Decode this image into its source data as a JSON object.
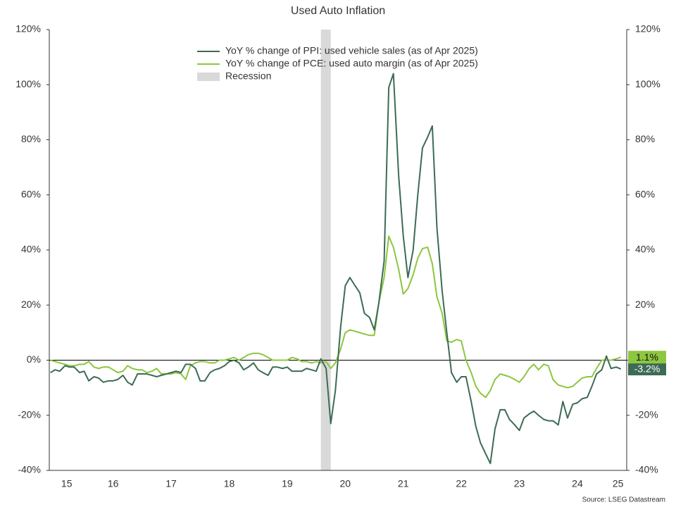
{
  "chart_data": {
    "type": "line",
    "title": "Used Auto Inflation",
    "source": "Source: LSEG Datastream",
    "x": [
      2015.42,
      2015.5,
      2015.58,
      2015.67,
      2015.75,
      2015.83,
      2015.92,
      2016.0,
      2016.08,
      2016.17,
      2016.25,
      2016.33,
      2016.42,
      2016.5,
      2016.58,
      2016.67,
      2016.75,
      2016.83,
      2016.92,
      2017.0,
      2017.08,
      2017.17,
      2017.25,
      2017.33,
      2017.42,
      2017.5,
      2017.58,
      2017.67,
      2017.75,
      2017.83,
      2017.92,
      2018.0,
      2018.08,
      2018.17,
      2018.25,
      2018.33,
      2018.42,
      2018.5,
      2018.58,
      2018.67,
      2018.75,
      2018.83,
      2018.92,
      2019.0,
      2019.08,
      2019.17,
      2019.25,
      2019.33,
      2019.42,
      2019.5,
      2019.58,
      2019.67,
      2019.75,
      2019.83,
      2019.92,
      2020.0,
      2020.08,
      2020.17,
      2020.25,
      2020.33,
      2020.42,
      2020.5,
      2020.58,
      2020.67,
      2020.75,
      2020.83,
      2020.92,
      2021.0,
      2021.08,
      2021.17,
      2021.25,
      2021.33,
      2021.42,
      2021.5,
      2021.58,
      2021.67,
      2021.75,
      2021.83,
      2021.92,
      2022.0,
      2022.08,
      2022.17,
      2022.25,
      2022.33,
      2022.42,
      2022.5,
      2022.58,
      2022.67,
      2022.75,
      2022.83,
      2022.92,
      2023.0,
      2023.08,
      2023.17,
      2023.25,
      2023.33,
      2023.42,
      2023.5,
      2023.58,
      2023.67,
      2023.75,
      2023.83,
      2023.92,
      2024.0,
      2024.08,
      2024.17,
      2024.25,
      2024.33,
      2024.42,
      2024.5,
      2024.58,
      2024.67,
      2024.75,
      2024.83,
      2024.92,
      2025.0,
      2025.08,
      2025.17,
      2025.25
    ],
    "series": [
      {
        "name": "YoY % change of PPI: used vehicle sales (as of Apr 2025)",
        "color": "#3d6b55",
        "end_label": {
          "value": -3.2,
          "label": "-3.2%"
        },
        "values": [
          -4.5,
          -3.5,
          -4,
          -2,
          -2.5,
          -2.5,
          -4.5,
          -4,
          -7.5,
          -6,
          -6.5,
          -8,
          -7.5,
          -7.5,
          -7,
          -5.5,
          -8,
          -9,
          -5,
          -5,
          -5,
          -5.5,
          -6,
          -5.5,
          -5,
          -4.5,
          -4,
          -4.5,
          -1.5,
          -1.5,
          -3,
          -7.5,
          -7.5,
          -4.5,
          -3.5,
          -3,
          -2,
          -0.5,
          0,
          -1,
          -3.5,
          -2.5,
          -1,
          -3.5,
          -4.5,
          -5.5,
          -2.5,
          -2.5,
          -3,
          -2.5,
          -4,
          -4,
          -4,
          -3,
          -3.5,
          -4,
          0.5,
          -3,
          -23,
          -11,
          12,
          27,
          30,
          27,
          24.5,
          17,
          15.5,
          11,
          21,
          36,
          99,
          104,
          67,
          45,
          30,
          40,
          60,
          77,
          81,
          85,
          48,
          25,
          10,
          -4.5,
          -8,
          -6,
          -6,
          -15,
          -24,
          -30,
          -34,
          -37.5,
          -25,
          -18,
          -18,
          -21.5,
          -23.5,
          -25.5,
          -21,
          -19.5,
          -18.5,
          -20,
          -21.5,
          -22,
          -22,
          -23.5,
          -15,
          -21,
          -16,
          -15.5,
          -14,
          -13.5,
          -9.5,
          -5,
          -3.5,
          1.5,
          -3,
          -2.5,
          -3.2
        ]
      },
      {
        "name": "YoY % change of PCE: used auto margin (as of Apr 2025)",
        "color": "#8dc63f",
        "end_label": {
          "value": 1.1,
          "label": "1.1%"
        },
        "values": [
          0,
          -0.5,
          -1,
          -1.5,
          -2,
          -2,
          -1.5,
          -1.5,
          -0.5,
          -2.5,
          -3,
          -2.5,
          -2.5,
          -3.5,
          -4.5,
          -4,
          -2,
          -3,
          -3.5,
          -3.5,
          -4.5,
          -4,
          -3,
          -5,
          -5,
          -5,
          -4.5,
          -5,
          -7,
          -2,
          -1,
          -0.5,
          -0.5,
          -1,
          -1,
          0,
          0,
          0.5,
          1,
          0,
          1,
          2,
          2.5,
          2.5,
          2,
          1,
          0,
          0,
          0,
          0,
          1,
          0.5,
          -0.5,
          -0.5,
          -1,
          -0.5,
          -1,
          -0.5,
          -3,
          -1,
          4,
          10,
          11,
          10.5,
          10,
          9.5,
          9,
          9,
          21,
          30,
          45,
          41,
          33,
          24,
          26,
          31,
          37,
          40.5,
          41,
          35,
          23,
          17,
          7,
          6.5,
          7.5,
          7,
          0,
          -4.5,
          -9.5,
          -12,
          -13.5,
          -11,
          -7,
          -5,
          -5.5,
          -6,
          -7,
          -8,
          -6,
          -3,
          -1.5,
          -3.5,
          -1.5,
          -2,
          -7,
          -9,
          -9.5,
          -10,
          -9.5,
          -8,
          -6.5,
          -6,
          -6,
          -3,
          0,
          0,
          0,
          0.5,
          1.1
        ]
      }
    ],
    "recession": {
      "name": "Recession",
      "color": "#d9d9d9",
      "x": [
        2020.08,
        2020.25
      ]
    },
    "xlim": [
      2015.4,
      2025.35
    ],
    "xticks": [
      {
        "value": 2015.7,
        "label": "15"
      },
      {
        "value": 2016.5,
        "label": "16"
      },
      {
        "value": 2017.5,
        "label": "17"
      },
      {
        "value": 2018.5,
        "label": "18"
      },
      {
        "value": 2019.5,
        "label": "19"
      },
      {
        "value": 2020.5,
        "label": "20"
      },
      {
        "value": 2021.5,
        "label": "21"
      },
      {
        "value": 2022.5,
        "label": "22"
      },
      {
        "value": 2023.5,
        "label": "23"
      },
      {
        "value": 2024.5,
        "label": "24"
      },
      {
        "value": 2025.2,
        "label": "25"
      }
    ],
    "ylim": [
      -40,
      120
    ],
    "yticks": [
      {
        "value": -40,
        "label": "-40%"
      },
      {
        "value": -20,
        "label": "-20%"
      },
      {
        "value": 0,
        "label": "0%"
      },
      {
        "value": 20,
        "label": "20%"
      },
      {
        "value": 40,
        "label": "40%"
      },
      {
        "value": 60,
        "label": "60%"
      },
      {
        "value": 80,
        "label": "80%"
      },
      {
        "value": 100,
        "label": "100%"
      },
      {
        "value": 120,
        "label": "120%"
      }
    ]
  }
}
